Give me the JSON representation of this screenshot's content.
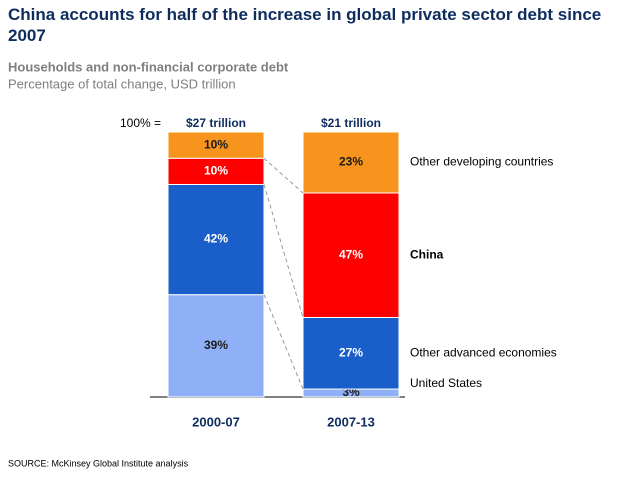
{
  "chart_data": {
    "type": "stacked_bar_100",
    "title": "China accounts for half of the increase in global private sector debt since 2007",
    "subtitle": "Households and non-financial corporate debt",
    "unit_note": "Percentage of total change, USD trillion",
    "total_prefix": "100% =",
    "categories": [
      "2000-07",
      "2007-13"
    ],
    "totals": [
      27,
      21
    ],
    "total_labels": [
      "$27 trillion",
      "$21 trillion"
    ],
    "series": [
      {
        "name": "United States",
        "color": "#8fb0f7",
        "values": [
          39,
          3
        ],
        "value_labels": [
          "39%",
          "3%"
        ]
      },
      {
        "name": "Other advanced economies",
        "color": "#1a5fc9",
        "values": [
          42,
          27
        ],
        "value_labels": [
          "42%",
          "27%"
        ]
      },
      {
        "name": "China",
        "color": "#ff0000",
        "values": [
          10,
          47
        ],
        "value_labels": [
          "10%",
          "47%"
        ]
      },
      {
        "name": "Other developing countries",
        "color": "#f7941d",
        "values": [
          10,
          23
        ],
        "value_labels": [
          "10%",
          "23%"
        ]
      }
    ],
    "source": "SOURCE: McKinsey Global Institute analysis"
  }
}
